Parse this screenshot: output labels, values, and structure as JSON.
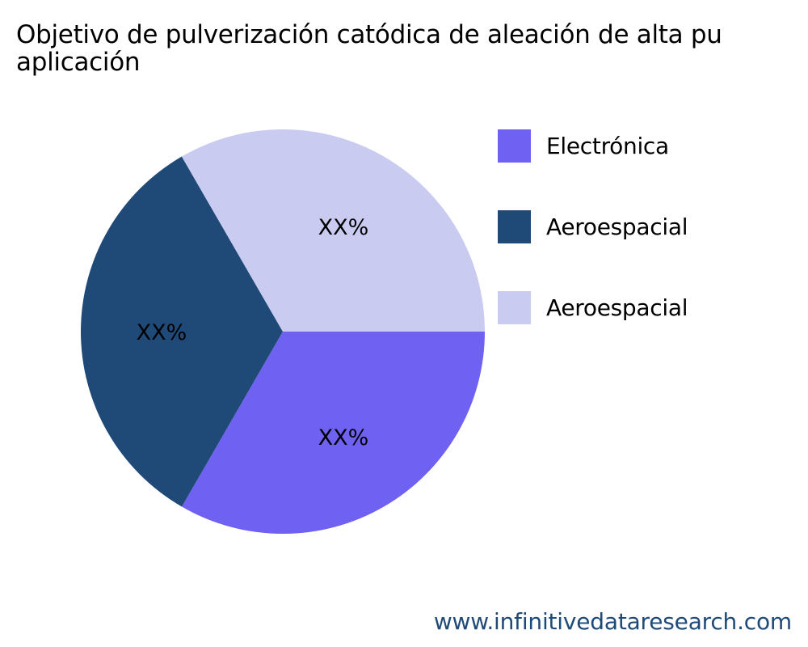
{
  "chart_data": {
    "type": "pie",
    "title_lines": [
      "Objetivo de pulverización catódica de aleación de alta pu",
      "aplicación"
    ],
    "slices": [
      {
        "label": "Electrónica",
        "value": 33.33,
        "data_label": "XX%",
        "color": "#6f61f2"
      },
      {
        "label": "Aeroespacial",
        "value": 33.33,
        "data_label": "XX%",
        "color": "#1f4a78"
      },
      {
        "label": "Aeroespacial",
        "value": 33.34,
        "data_label": "XX%",
        "color": "#c9cbf0"
      }
    ],
    "legend_position": "right"
  },
  "footer": {
    "text": "www.infinitivedataresearch.com"
  }
}
